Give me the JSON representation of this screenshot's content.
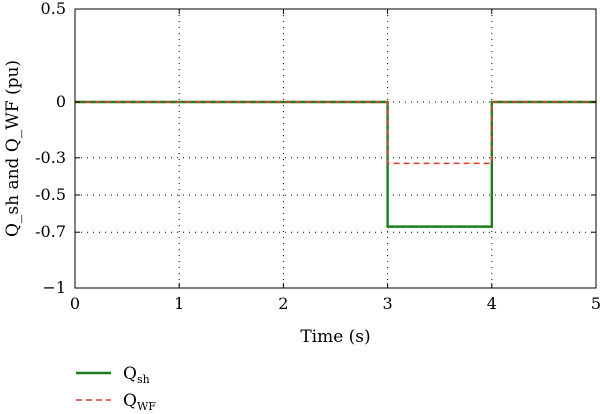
{
  "chart_data": {
    "type": "line",
    "xlabel": "Time (s)",
    "ylabel": "Q_sh and Q_WF (pu)",
    "xlim": [
      0,
      5
    ],
    "ylim": [
      -1,
      0.5
    ],
    "x_ticks": [
      0,
      1,
      2,
      3,
      4,
      5
    ],
    "x_tick_labels": [
      "0",
      "1",
      "2",
      "3",
      "4",
      "5"
    ],
    "y_ticks": [
      0.5,
      0,
      -0.3,
      -0.5,
      -0.7,
      -1
    ],
    "y_tick_labels": [
      "0.5",
      "0",
      "-0.3",
      "-0.5",
      "-0.7",
      "−1"
    ],
    "grid": true,
    "legend_position": "bottom-left",
    "series": [
      {
        "name": "Q_sh",
        "legend_main": "Q",
        "legend_sub": "sh",
        "color": "#1a7f1a",
        "line_style": "solid",
        "x": [
          0,
          3,
          3,
          4,
          4,
          5
        ],
        "y": [
          0,
          0,
          -0.67,
          -0.67,
          0,
          0
        ]
      },
      {
        "name": "Q_WF",
        "legend_main": "Q",
        "legend_sub": "WF",
        "color": "#e23b2e",
        "line_style": "dashed",
        "x": [
          0,
          3,
          3,
          4,
          4,
          5
        ],
        "y": [
          0,
          0,
          -0.33,
          -0.33,
          0,
          0
        ]
      }
    ]
  }
}
